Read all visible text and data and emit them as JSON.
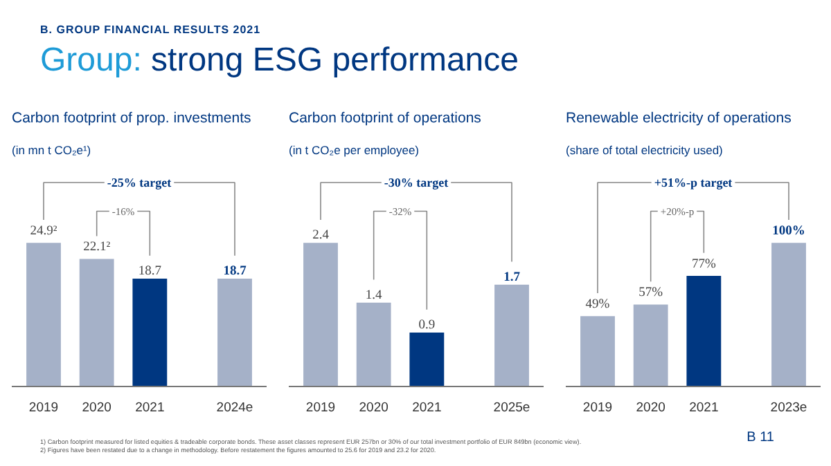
{
  "chart_data": [
    {
      "type": "bar",
      "title": "Carbon footprint of prop. investments",
      "subtitle": "(in mn t CO₂e¹)",
      "categories": [
        "2019",
        "2020",
        "2021",
        "2024e"
      ],
      "values": [
        24.9,
        22.1,
        18.7,
        18.7
      ],
      "value_labels": [
        "24.9²",
        "22.1²",
        "18.7",
        "18.7"
      ],
      "colors": [
        "#a5b1c8",
        "#a5b1c8",
        "#003781",
        "#a5b1c8"
      ],
      "annotations": [
        "-25% target",
        "-16%",
        "B. GROUP FINANCIAL RESULTS 2021",
        "Group: strong ESG performance"
      ]
    },
    {
      "type": "bar",
      "title": "Carbon footprint of operations",
      "subtitle": "(in t CO₂e per employee)",
      "categories": [
        "2019",
        "2020",
        "2021",
        "2025e"
      ],
      "values": [
        2.4,
        1.4,
        0.9,
        1.7
      ],
      "value_labels": [
        "2.4",
        "1.4",
        "0.9",
        "1.7"
      ],
      "colors": [
        "#a5b1c8",
        "#a5b1c8",
        "#003781",
        "#a5b1c8"
      ],
      "annotations": [
        "-30% target",
        "-32%"
      ]
    },
    {
      "type": "bar",
      "title": "Renewable electricity of operations",
      "subtitle": "(share of total electricity used)",
      "categories": [
        "2019",
        "2020",
        "2021",
        "2023e"
      ],
      "values": [
        49,
        57,
        77,
        100
      ],
      "value_labels": [
        "49%",
        "57%",
        "77%",
        "100%"
      ],
      "colors": [
        "#a5b1c8",
        "#a5b1c8",
        "#003781",
        "#a5b1c8"
      ],
      "annotations": [
        "+51%-p target",
        "+20%-p",
        "1)  Carbon footprint measured for listed equities & tradeable corporate bonds. These asset classes represent EUR 257bn or 30% of our total investment portfolio of EUR 849bn (economic view).",
        "2)  Figures have been restated due to a change in methodology. Before restatement the figures amounted to 25.6 for 2019 and 23.2 for 2020.",
        "B 11"
      ]
    }
  ]
}
